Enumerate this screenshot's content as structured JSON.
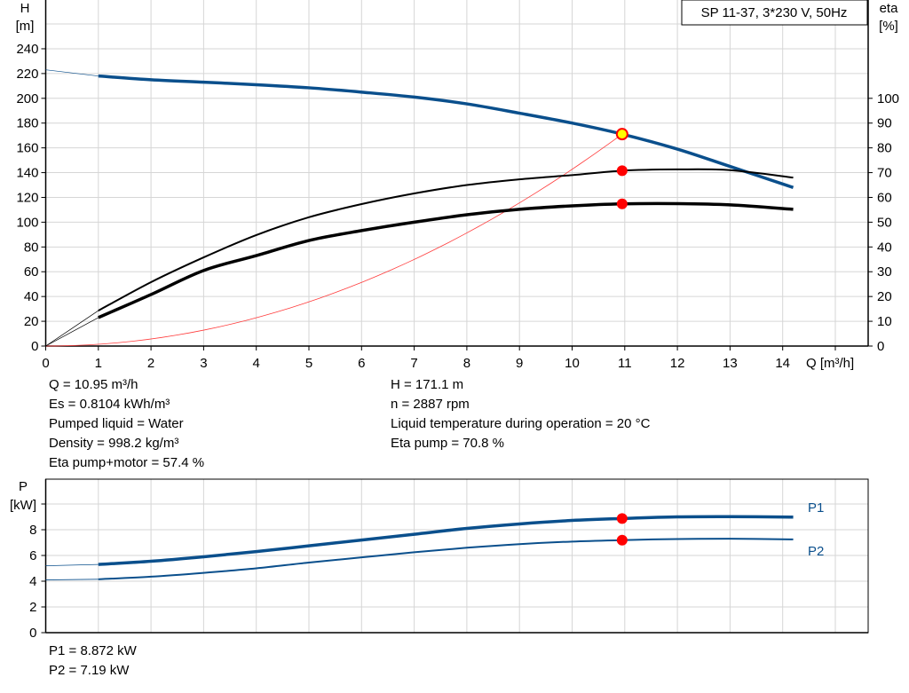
{
  "colors": {
    "head": "#0a4f8c",
    "eta": "#000000",
    "system": "#ff3b3b",
    "duty_point": "#ff0000",
    "duty_fill": "#ffff00",
    "power": "#0a4f8c",
    "grid": "#d6d6d6"
  },
  "chart_data": [
    {
      "type": "line",
      "title": "SP 11-37, 3*230 V, 50Hz",
      "xlabel": "Q [m³/h]",
      "ylabel": "H\n[m]",
      "y2label": "eta\n[%]",
      "ylabel_lines": [
        "H",
        "[m]"
      ],
      "y2label_lines": [
        "eta",
        "[%]"
      ],
      "xlim": [
        0,
        15.6
      ],
      "ylim": [
        0,
        260
      ],
      "y2lim": [
        0,
        130
      ],
      "xticks": [
        0,
        1,
        2,
        3,
        4,
        5,
        6,
        7,
        8,
        9,
        10,
        11,
        12,
        13,
        14
      ],
      "yticks": [
        0,
        20,
        40,
        60,
        80,
        100,
        120,
        140,
        160,
        180,
        200,
        220,
        240
      ],
      "y2ticks": [
        0,
        10,
        20,
        30,
        40,
        50,
        60,
        70,
        80,
        90,
        100
      ],
      "grid": true,
      "series": [
        {
          "id": "head",
          "axis": "left",
          "extrapolated": [
            [
              0,
              223
            ],
            [
              1,
              218
            ]
          ],
          "x": [
            1,
            2,
            3,
            4,
            5,
            6,
            7,
            8,
            9,
            10,
            10.95,
            12,
            13,
            14.2
          ],
          "y": [
            218,
            215,
            213,
            211,
            208.5,
            205,
            201,
            195.5,
            188,
            180,
            171.1,
            159,
            145,
            128
          ]
        },
        {
          "id": "eta-pump",
          "axis": "right",
          "extrapolated": [
            [
              0,
              0
            ],
            [
              1,
              14.3
            ]
          ],
          "x": [
            1,
            2,
            3,
            4,
            5,
            6,
            7,
            8,
            9,
            10,
            10.95,
            12,
            13,
            14.2
          ],
          "y": [
            14.3,
            25.8,
            35.8,
            44.8,
            52,
            57.3,
            61.6,
            65,
            67.3,
            69,
            70.8,
            71.3,
            71,
            68
          ]
        },
        {
          "id": "eta-pump-motor",
          "axis": "right",
          "extrapolated": [
            [
              0,
              0
            ],
            [
              1,
              11.5
            ]
          ],
          "x": [
            1,
            2,
            3,
            4,
            5,
            6,
            7,
            8,
            9,
            10,
            10.95,
            12,
            13,
            14.2
          ],
          "y": [
            11.5,
            20.8,
            30.5,
            36.5,
            42.6,
            46.6,
            50,
            53,
            55.2,
            56.6,
            57.4,
            57.5,
            57,
            55.2
          ]
        },
        {
          "id": "system-curve",
          "axis": "left",
          "type": "parabola",
          "x": [
            0,
            10.95
          ],
          "y": [
            0,
            171.1
          ]
        }
      ],
      "duty_point": {
        "Q": 10.95,
        "H": 171.1,
        "eta_pump": 70.8,
        "eta_pump_motor": 57.4
      }
    },
    {
      "type": "line",
      "ylabel_lines": [
        "P",
        "[kW]"
      ],
      "xlim": [
        0,
        15.6
      ],
      "ylim": [
        0,
        12
      ],
      "yticks": [
        0,
        2,
        4,
        6,
        8
      ],
      "grid": true,
      "series": [
        {
          "name": "P1",
          "extrapolated": [
            [
              0,
              5.2
            ],
            [
              1,
              5.3
            ]
          ],
          "x": [
            1,
            2,
            3,
            4,
            5,
            6,
            7,
            8,
            9,
            10,
            10.95,
            12,
            13,
            14.2
          ],
          "y": [
            5.3,
            5.55,
            5.9,
            6.3,
            6.75,
            7.2,
            7.65,
            8.1,
            8.45,
            8.72,
            8.872,
            9.0,
            9.02,
            8.98
          ]
        },
        {
          "name": "P2",
          "extrapolated": [
            [
              0,
              4.1
            ],
            [
              1,
              4.15
            ]
          ],
          "x": [
            1,
            2,
            3,
            4,
            5,
            6,
            7,
            8,
            9,
            10,
            10.95,
            12,
            13,
            14.2
          ],
          "y": [
            4.15,
            4.35,
            4.65,
            5.0,
            5.45,
            5.85,
            6.25,
            6.6,
            6.88,
            7.08,
            7.19,
            7.28,
            7.3,
            7.25
          ]
        }
      ],
      "duty_point": {
        "Q": 10.95,
        "P1": 8.872,
        "P2": 7.19
      }
    }
  ],
  "info": {
    "left": [
      "Q = 10.95 m³/h",
      "Es = 0.8104 kWh/m³",
      "Pumped liquid = Water",
      "Density = 998.2 kg/m³",
      "Eta pump+motor = 57.4 %"
    ],
    "right": [
      "H = 171.1 m",
      "n = 2887 rpm",
      "Liquid temperature during operation = 20 °C",
      "Eta pump = 70.8 %"
    ],
    "power": [
      "P1 = 8.872 kW",
      "P2 = 7.19 kW"
    ]
  }
}
